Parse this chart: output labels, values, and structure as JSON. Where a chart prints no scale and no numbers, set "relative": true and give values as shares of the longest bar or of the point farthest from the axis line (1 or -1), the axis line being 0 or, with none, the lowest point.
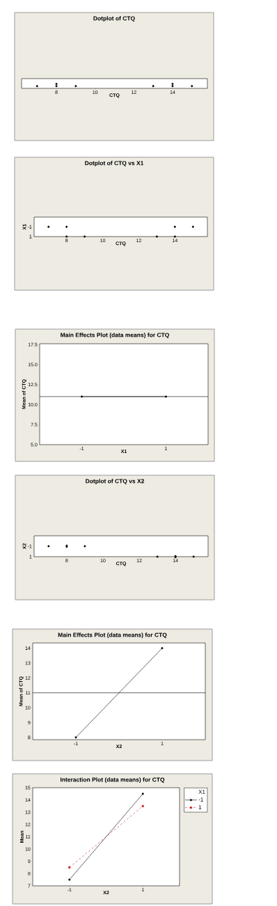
{
  "chart_data": [
    {
      "type": "scatter",
      "title": "Dotplot of CTQ",
      "xlabel": "CTQ",
      "relative": true,
      "marker": "circle",
      "color": "#000000",
      "x": [
        7,
        8,
        8,
        9,
        13,
        14,
        14,
        15
      ],
      "values": [
        0.5,
        0.5,
        1,
        0.5,
        0.5,
        0.5,
        1,
        0.5
      ],
      "xlim": [
        6.2,
        15.8
      ],
      "xticks": [
        8,
        10,
        12,
        14
      ]
    },
    {
      "type": "scatter",
      "title": "Dotplot of CTQ vs X1",
      "xlabel": "CTQ",
      "ylabel": "X1",
      "marker": "circle",
      "color": "#000000",
      "x": [
        7,
        8,
        14,
        15,
        8,
        9,
        13,
        14
      ],
      "values": [
        -1,
        -1,
        -1,
        -1,
        1,
        1,
        1,
        1
      ],
      "xlim": [
        6.2,
        15.8
      ],
      "xticks": [
        8,
        10,
        12,
        14
      ],
      "ylim": [
        1,
        -3
      ],
      "yticks": [
        -1,
        1
      ]
    },
    {
      "type": "line",
      "title": "Main Effects Plot (data means) for CTQ",
      "xlabel": "X1",
      "ylabel": "Mean of CTQ",
      "marker": "circle",
      "color": "#000000",
      "categories": [
        "-1",
        "1"
      ],
      "values": [
        11,
        11
      ],
      "ylim": [
        5,
        17.6
      ],
      "yticks": [
        {
          "value": 5,
          "label": "5.0"
        },
        {
          "value": 7.5,
          "label": "7.5"
        },
        {
          "value": 10,
          "label": "10.0"
        },
        {
          "value": 12.5,
          "label": "12.5"
        },
        {
          "value": 15,
          "label": "15.0"
        },
        {
          "value": 17.5,
          "label": "17.5"
        }
      ],
      "ref_lines": [
        {
          "axis": "y",
          "value": 11
        }
      ]
    },
    {
      "type": "scatter",
      "title": "Dotplot of CTQ vs X2",
      "xlabel": "CTQ",
      "ylabel": "X2",
      "marker": "circle",
      "color": "#000000",
      "x": [
        7,
        8,
        8,
        9,
        13,
        14,
        14,
        15
      ],
      "values": [
        -1,
        -1,
        -1,
        -1,
        1,
        1,
        1,
        1
      ],
      "xlim": [
        6.2,
        15.8
      ],
      "xticks": [
        8,
        10,
        12,
        14
      ],
      "ylim": [
        1,
        -3
      ],
      "yticks": [
        -1,
        1
      ]
    },
    {
      "type": "line",
      "title": "Main Effects Plot (data means) for CTQ",
      "xlabel": "X2",
      "ylabel": "Mean of CTQ",
      "marker": "circle",
      "color": "#000000",
      "categories": [
        "-1",
        "1"
      ],
      "values": [
        8,
        14
      ],
      "ylim": [
        7.85,
        14.35
      ],
      "yticks": [
        8,
        9,
        10,
        11,
        12,
        13,
        14
      ],
      "ref_lines": [
        {
          "axis": "y",
          "value": 11
        }
      ]
    },
    {
      "type": "line",
      "title": "Interaction Plot (data means) for CTQ",
      "xlabel": "X2",
      "ylabel": "Mean",
      "legend": "top right",
      "legend_title": "X1",
      "categories": [
        "-1",
        "1"
      ],
      "series": [
        {
          "name": "-1",
          "color": "#000000",
          "marker": "circle",
          "line_style": "solid",
          "values": [
            7.5,
            14.5
          ]
        },
        {
          "name": "1",
          "color": "#cc2222",
          "marker": "square",
          "line_style": "dashed",
          "values": [
            8.5,
            13.5
          ]
        }
      ],
      "ylim": [
        7,
        15
      ],
      "yticks": [
        7,
        8,
        9,
        10,
        11,
        12,
        13,
        14,
        15
      ]
    }
  ]
}
